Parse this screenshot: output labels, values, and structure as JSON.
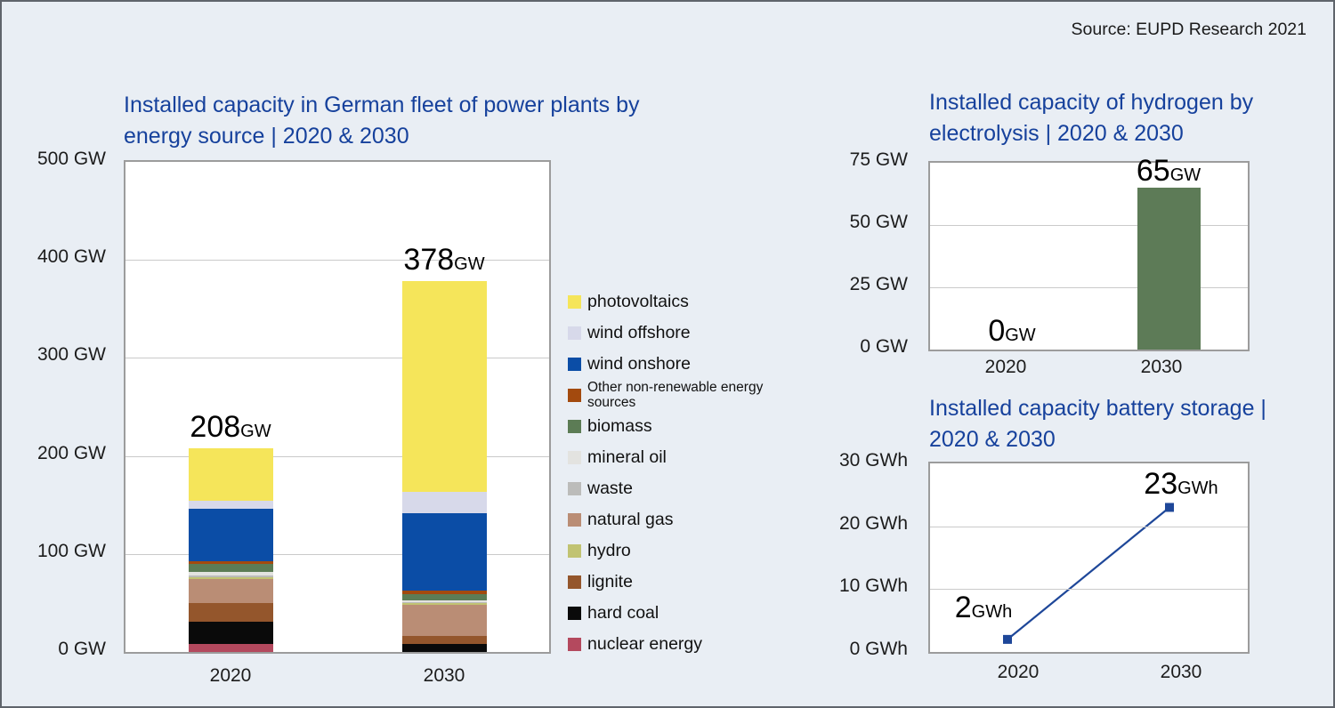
{
  "source_credit": "Source: EUPD Research 2021",
  "colors": {
    "background": "#e9eef4",
    "title_blue": "#16419c",
    "plot_border": "#9c9c9c",
    "gridline": "#cacaca",
    "text": "#111111"
  },
  "chart_data": [
    {
      "type": "bar",
      "stacked": true,
      "title": "Installed capacity in German fleet of power plants by energy source | 2020 & 2030",
      "unit": "GW",
      "categories": [
        "2020",
        "2030"
      ],
      "ylim": [
        0,
        500
      ],
      "yticks": [
        "500 GW",
        "400 GW",
        "300 GW",
        "200 GW",
        "100 GW",
        "0 GW"
      ],
      "grid": true,
      "legend_position": "right",
      "totals": [
        {
          "value": "208",
          "unit": "GW"
        },
        {
          "value": "378",
          "unit": "GW"
        }
      ],
      "series": [
        {
          "name": "nuclear energy",
          "color": "#b4495e",
          "values": [
            8,
            0
          ]
        },
        {
          "name": "hard coal",
          "color": "#0a0a0a",
          "values": [
            23,
            8
          ]
        },
        {
          "name": "lignite",
          "color": "#94562c",
          "values": [
            19,
            8
          ]
        },
        {
          "name": "natural gas",
          "color": "#ba8d75",
          "values": [
            24,
            32
          ]
        },
        {
          "name": "hydro",
          "color": "#c1c372",
          "values": [
            2,
            2
          ]
        },
        {
          "name": "waste",
          "color": "#bcbcba",
          "values": [
            2,
            1
          ]
        },
        {
          "name": "mineral oil",
          "color": "#e3e3e0",
          "values": [
            4,
            2
          ]
        },
        {
          "name": "biomass",
          "color": "#5c7c55",
          "values": [
            8,
            6
          ]
        },
        {
          "name": "Other non-renewable energy sources",
          "color": "#a34a0e",
          "values": [
            3,
            4
          ]
        },
        {
          "name": "wind onshore",
          "color": "#0b4da6",
          "values": [
            53,
            79
          ]
        },
        {
          "name": "wind offshore",
          "color": "#d7d9ea",
          "values": [
            8,
            21
          ]
        },
        {
          "name": "photovoltaics",
          "color": "#f5e55a",
          "values": [
            54,
            215
          ]
        }
      ],
      "legend": [
        {
          "label": "photovoltaics",
          "color": "#f5e55a"
        },
        {
          "label": "wind offshore",
          "color": "#d7d9ea"
        },
        {
          "label": "wind onshore",
          "color": "#0b4da6"
        },
        {
          "label": "Other non-renewable energy sources",
          "color": "#a34a0e"
        },
        {
          "label": "biomass",
          "color": "#5c7c55"
        },
        {
          "label": "mineral oil",
          "color": "#e3e3e0"
        },
        {
          "label": "waste",
          "color": "#bcbcba"
        },
        {
          "label": "natural gas",
          "color": "#ba8d75"
        },
        {
          "label": "hydro",
          "color": "#c1c372"
        },
        {
          "label": "lignite",
          "color": "#94562c"
        },
        {
          "label": "hard coal",
          "color": "#0a0a0a"
        },
        {
          "label": "nuclear energy",
          "color": "#b4495e"
        }
      ]
    },
    {
      "type": "bar",
      "title": "Installed capacity of hydrogen by electrolysis | 2020 & 2030",
      "unit": "GW",
      "categories": [
        "2020",
        "2030"
      ],
      "ylim": [
        0,
        75
      ],
      "yticks": [
        "75 GW",
        "50 GW",
        "25 GW",
        "0 GW"
      ],
      "grid": true,
      "values": [
        0,
        65
      ],
      "bar_color": "#5d7b57",
      "labels": [
        {
          "value": "0",
          "unit": "GW"
        },
        {
          "value": "65",
          "unit": "GW"
        }
      ]
    },
    {
      "type": "line",
      "title": "Installed capacity battery storage | 2020 & 2030",
      "unit": "GWh",
      "categories": [
        "2020",
        "2030"
      ],
      "ylim": [
        0,
        30
      ],
      "yticks": [
        "30 GWh",
        "20 GWh",
        "10 GWh",
        "0 GWh"
      ],
      "grid": true,
      "values": [
        2,
        23
      ],
      "line_color": "#1e4799",
      "marker": "square",
      "labels": [
        {
          "value": "2",
          "unit": "GWh"
        },
        {
          "value": "23",
          "unit": "GWh"
        }
      ]
    }
  ]
}
